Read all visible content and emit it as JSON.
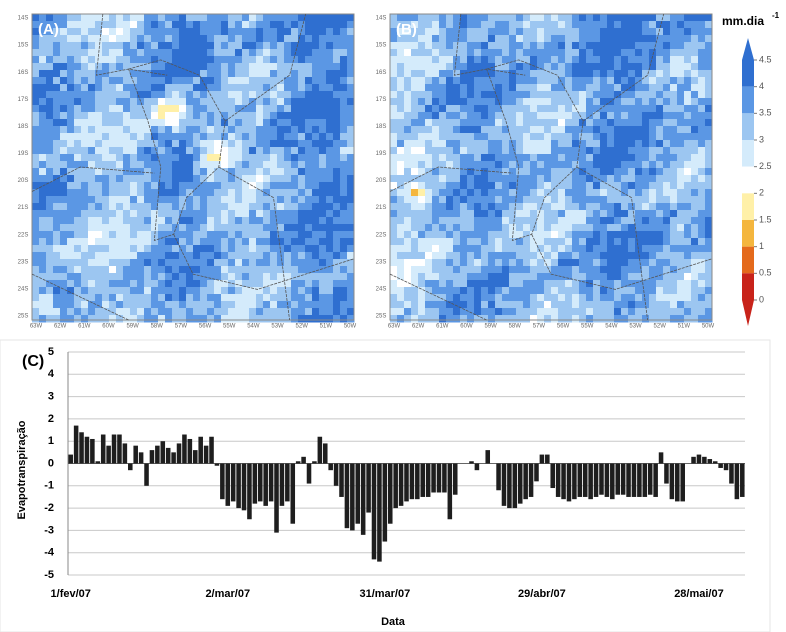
{
  "maps": {
    "panels": [
      "(A)",
      "(B)"
    ],
    "lat_labels": [
      "14S",
      "15S",
      "16S",
      "17S",
      "18S",
      "19S",
      "20S",
      "21S",
      "22S",
      "23S",
      "24S",
      "25S"
    ],
    "lon_labels": [
      "63W",
      "62W",
      "61W",
      "60W",
      "59W",
      "58W",
      "57W",
      "56W",
      "55W",
      "54W",
      "53W",
      "52W",
      "51W",
      "50W"
    ]
  },
  "colorbar": {
    "unit": "mm.dia",
    "unit_exponent": "-1",
    "ticks": [
      4.5,
      4,
      3.5,
      3,
      2.5,
      2,
      1.5,
      1,
      0.5,
      0
    ],
    "colors": [
      "#2f6fd0",
      "#5b97e4",
      "#9cc6f1",
      "#d4ebfb",
      "#ffffff",
      "#fff0a8",
      "#f4b63e",
      "#e46a1c",
      "#c8231a"
    ]
  },
  "chart_data": {
    "type": "bar",
    "panel_label": "(C)",
    "x_label": "Data",
    "y_label": "Evapotranspiração",
    "categories": [
      "1/fev/07",
      null,
      null,
      null,
      null,
      null,
      null,
      null,
      null,
      null,
      null,
      null,
      null,
      null,
      null,
      null,
      null,
      null,
      null,
      null,
      null,
      null,
      null,
      null,
      null,
      null,
      null,
      null,
      null,
      "2/mar/07",
      null,
      null,
      null,
      null,
      null,
      null,
      null,
      null,
      null,
      null,
      null,
      null,
      null,
      null,
      null,
      null,
      null,
      null,
      null,
      null,
      null,
      null,
      null,
      null,
      null,
      null,
      null,
      null,
      "31/mar/07",
      null,
      null,
      null,
      null,
      null,
      null,
      null,
      null,
      null,
      null,
      null,
      null,
      null,
      null,
      null,
      null,
      null,
      null,
      null,
      null,
      null,
      null,
      null,
      null,
      null,
      null,
      null,
      null,
      "29/abr/07",
      null,
      null,
      null,
      null,
      null,
      null,
      null,
      null,
      null,
      null,
      null,
      null,
      null,
      null,
      null,
      null,
      null,
      null,
      null,
      null,
      null,
      null,
      null,
      null,
      null,
      null,
      null,
      null,
      "28/mai/07",
      null,
      null,
      null,
      null,
      null,
      null,
      null,
      null
    ],
    "values": [
      0.4,
      1.7,
      1.4,
      1.2,
      1.1,
      0.1,
      1.3,
      0.8,
      1.3,
      1.3,
      0.9,
      -0.3,
      0.8,
      0.5,
      -1.0,
      0.6,
      0.8,
      1.0,
      0.7,
      0.5,
      0.9,
      1.3,
      1.1,
      0.6,
      1.2,
      0.8,
      1.2,
      -0.1,
      -1.6,
      -1.9,
      -1.7,
      -2.0,
      -2.1,
      -2.5,
      -1.8,
      -1.7,
      -1.9,
      -1.7,
      -3.1,
      -1.9,
      -1.7,
      -2.7,
      0.1,
      0.3,
      -0.9,
      0.1,
      1.2,
      0.9,
      -0.3,
      -1.0,
      -1.5,
      -2.9,
      -3.0,
      -2.7,
      -3.2,
      -2.2,
      -4.3,
      -4.4,
      -3.5,
      -2.7,
      -2.0,
      -1.9,
      -1.7,
      -1.6,
      -1.6,
      -1.5,
      -1.5,
      -1.3,
      -1.3,
      -1.3,
      -2.5,
      -1.4,
      0.0,
      0.0,
      0.1,
      -0.3,
      0.0,
      0.6,
      0.0,
      -1.2,
      -1.9,
      -2.0,
      -2.0,
      -1.8,
      -1.6,
      -1.5,
      -0.8,
      0.4,
      0.4,
      -1.1,
      -1.5,
      -1.6,
      -1.7,
      -1.6,
      -1.5,
      -1.5,
      -1.6,
      -1.5,
      -1.4,
      -1.5,
      -1.6,
      -1.4,
      -1.4,
      -1.5,
      -1.5,
      -1.5,
      -1.5,
      -1.4,
      -1.5,
      0.5,
      -0.9,
      -1.6,
      -1.7,
      -1.7,
      0.0,
      0.3,
      0.4,
      0.3,
      0.2,
      0.1,
      -0.2,
      -0.3,
      -0.9,
      -1.6,
      -1.5
    ],
    "color": "#1e1e1e",
    "ylim": [
      -5,
      5
    ],
    "yticks": [
      -5,
      -4,
      -3,
      -2,
      -1,
      0,
      1,
      2,
      3,
      4,
      5
    ],
    "grid": true
  }
}
